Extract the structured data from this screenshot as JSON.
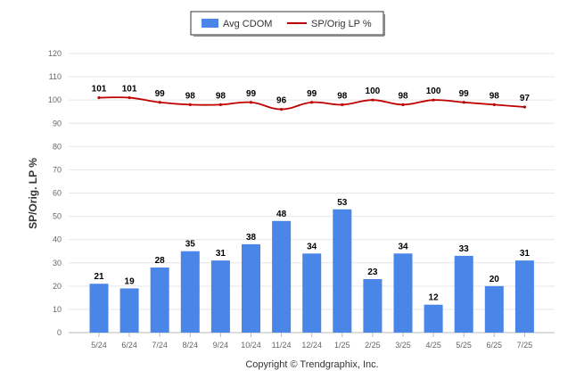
{
  "chart_data": {
    "type": "bar",
    "categories": [
      "5/24",
      "6/24",
      "7/24",
      "8/24",
      "9/24",
      "10/24",
      "11/24",
      "12/24",
      "1/25",
      "2/25",
      "3/25",
      "4/25",
      "5/25",
      "6/25",
      "7/25"
    ],
    "series": [
      {
        "name": "Avg CDOM",
        "kind": "bar",
        "values": [
          21,
          19,
          28,
          35,
          31,
          38,
          48,
          34,
          53,
          23,
          34,
          12,
          33,
          20,
          31
        ],
        "color": "#4a86e8"
      },
      {
        "name": "SP/Orig LP %",
        "kind": "line",
        "values": [
          101,
          101,
          99,
          98,
          98,
          99,
          96,
          99,
          98,
          100,
          98,
          100,
          99,
          98,
          97
        ],
        "color": "#c00000"
      }
    ],
    "ylabel": "SP/Orig. LP %",
    "ylim": [
      0,
      120
    ],
    "yticks": [
      0,
      10,
      20,
      30,
      40,
      50,
      60,
      70,
      80,
      90,
      100,
      110,
      120
    ],
    "grid": true,
    "legend_position": "top-center"
  },
  "footer": {
    "copyright": "Copyright © Trendgraphix, Inc."
  }
}
